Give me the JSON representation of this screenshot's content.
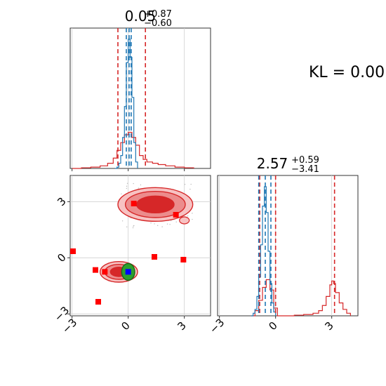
{
  "chart_data": {
    "type": "corner",
    "kl_label": "KL = 0.00",
    "colors": {
      "red": "#d62728",
      "red_light": "#f4a0a0",
      "red_mid": "#ea6b6b",
      "blue": "#1f77b4",
      "green": "#2ca02c",
      "marker_blue": "#0000ff",
      "marker_red": "#ff0000",
      "grid": "#d0d0d0",
      "scatter": "#bbbbbb"
    },
    "ticks": [
      -3,
      0,
      3
    ],
    "tick_labels": [
      "−3",
      "0",
      "3"
    ],
    "panels": {
      "p1": {
        "title_value": "0.05",
        "title_sup": "+0.87",
        "title_sub": "−0.60",
        "xlim": [
          -3.1,
          4.4
        ],
        "red_quantiles": [
          -0.55,
          0.92
        ],
        "blue_quantiles": [
          -0.1,
          0.05,
          0.16
        ],
        "blue_hist": {
          "x": [
            -0.7,
            -0.6,
            -0.5,
            -0.4,
            -0.3,
            -0.2,
            -0.1,
            0.0,
            0.1,
            0.2,
            0.3,
            0.4,
            0.5
          ],
          "y": [
            0.0,
            0.01,
            0.04,
            0.1,
            0.24,
            0.48,
            0.82,
            1.0,
            0.86,
            0.55,
            0.2,
            0.05,
            0.0
          ]
        },
        "red_hist": {
          "x": [
            -3.0,
            -2.5,
            -2.0,
            -1.5,
            -1.1,
            -0.8,
            -0.6,
            -0.4,
            -0.2,
            0.0,
            0.2,
            0.4,
            0.6,
            0.8,
            1.0,
            1.3,
            1.6,
            2.0,
            2.5,
            3.0,
            3.5
          ],
          "y": [
            0.0,
            0.005,
            0.01,
            0.02,
            0.04,
            0.08,
            0.14,
            0.2,
            0.26,
            0.28,
            0.24,
            0.18,
            0.1,
            0.07,
            0.05,
            0.04,
            0.03,
            0.02,
            0.01,
            0.005,
            0.0
          ]
        }
      },
      "p2": {
        "xlim": [
          -3.1,
          4.4
        ],
        "ylim": [
          -3.1,
          4.4
        ],
        "red_contour_upper": {
          "cx": 1.45,
          "cy": 2.85,
          "rx": [
            2.0,
            1.6,
            1.0
          ],
          "ry": [
            0.9,
            0.7,
            0.45
          ]
        },
        "red_contour_lower": {
          "cx": -0.5,
          "cy": -0.75,
          "rx": [
            1.0,
            0.75,
            0.45
          ],
          "ry": [
            0.55,
            0.4,
            0.25
          ]
        },
        "blue_point": [
          0.0,
          -0.75
        ],
        "green_contour": {
          "cx": 0.0,
          "cy": -0.75,
          "rx": 0.35,
          "ry": 0.45
        },
        "markers": [
          [
            -2.95,
            0.35
          ],
          [
            -1.75,
            -0.65
          ],
          [
            -1.25,
            -0.75
          ],
          [
            -1.6,
            -2.35
          ],
          [
            0.3,
            2.9
          ],
          [
            1.4,
            0.05
          ],
          [
            2.55,
            2.3
          ],
          [
            2.95,
            -0.1
          ]
        ]
      },
      "p3": {
        "title_value": "2.57",
        "title_sup": "+0.59",
        "title_sub": "−3.41",
        "xlim": [
          -3.1,
          4.4
        ],
        "red_quantiles": [
          -0.85,
          0.0,
          3.15
        ],
        "blue_quantiles": [
          -0.9,
          -0.55,
          -0.25
        ],
        "blue_hist": {
          "x": [
            -1.3,
            -1.2,
            -1.1,
            -1.0,
            -0.9,
            -0.8,
            -0.7,
            -0.6,
            -0.5,
            -0.4,
            -0.3,
            -0.2,
            -0.1,
            0.0
          ],
          "y": [
            0.0,
            0.02,
            0.05,
            0.15,
            0.3,
            0.55,
            0.85,
            1.0,
            0.8,
            0.5,
            0.25,
            0.1,
            0.03,
            0.0
          ]
        },
        "red_hist": {
          "x": [
            -1.3,
            -1.1,
            -0.9,
            -0.7,
            -0.5,
            -0.3,
            -0.1,
            0.1,
            0.5,
            1.0,
            1.5,
            2.0,
            2.3,
            2.5,
            2.7,
            2.9,
            3.0,
            3.1,
            3.2,
            3.4,
            3.6,
            3.8,
            4.0
          ],
          "y": [
            0.0,
            0.04,
            0.12,
            0.22,
            0.28,
            0.2,
            0.06,
            0.0,
            0.0,
            0.005,
            0.01,
            0.02,
            0.04,
            0.08,
            0.15,
            0.24,
            0.27,
            0.25,
            0.18,
            0.1,
            0.05,
            0.02,
            0.0
          ]
        }
      }
    }
  }
}
